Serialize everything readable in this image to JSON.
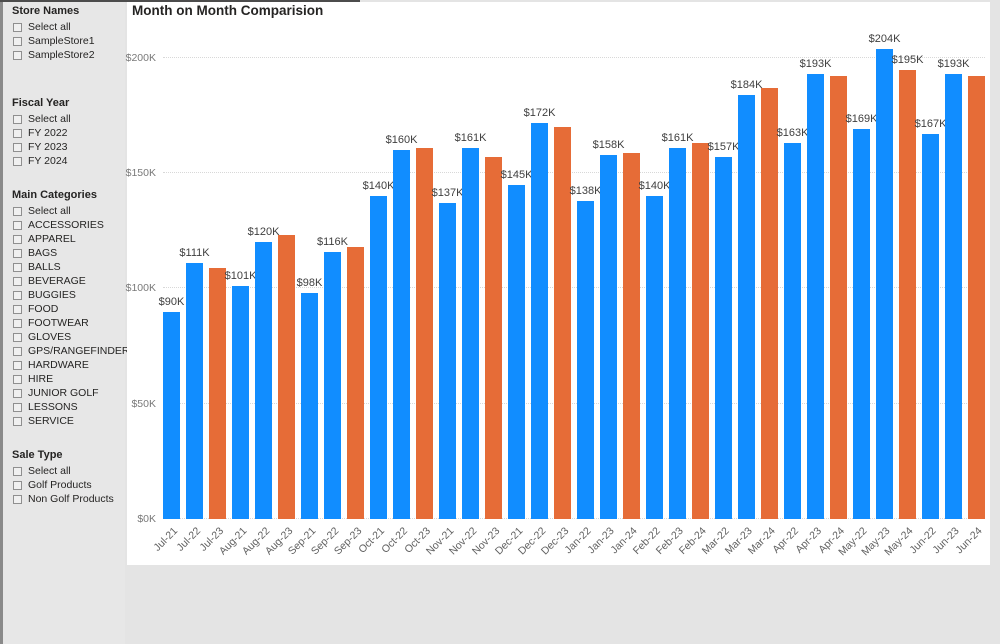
{
  "colors": {
    "bar_blue": "#118DFF",
    "bar_orange": "#E66C37",
    "card_bg": "#FFFFFF",
    "page_bg": "#E4E4E4"
  },
  "filter_pane": {
    "sections": [
      {
        "title": "Store Names",
        "items": [
          {
            "label": "Select all",
            "checked": false
          },
          {
            "label": "SampleStore1",
            "checked": false
          },
          {
            "label": "SampleStore2",
            "checked": false
          }
        ]
      },
      {
        "title": "Fiscal Year",
        "items": [
          {
            "label": "Select all",
            "checked": false
          },
          {
            "label": "FY 2022",
            "checked": false
          },
          {
            "label": "FY 2023",
            "checked": false
          },
          {
            "label": "FY 2024",
            "checked": false
          }
        ]
      },
      {
        "title": "Main Categories",
        "items": [
          {
            "label": "Select all",
            "checked": false
          },
          {
            "label": "ACCESSORIES",
            "checked": false
          },
          {
            "label": "APPAREL",
            "checked": false
          },
          {
            "label": "BAGS",
            "checked": false
          },
          {
            "label": "BALLS",
            "checked": false
          },
          {
            "label": "BEVERAGE",
            "checked": false
          },
          {
            "label": "BUGGIES",
            "checked": false
          },
          {
            "label": "FOOD",
            "checked": false
          },
          {
            "label": "FOOTWEAR",
            "checked": false
          },
          {
            "label": "GLOVES",
            "checked": false
          },
          {
            "label": "GPS/RANGEFINDERS",
            "checked": false
          },
          {
            "label": "HARDWARE",
            "checked": false
          },
          {
            "label": "HIRE",
            "checked": false
          },
          {
            "label": "JUNIOR GOLF",
            "checked": false
          },
          {
            "label": "LESSONS",
            "checked": false
          },
          {
            "label": "SERVICE",
            "checked": false
          }
        ]
      },
      {
        "title": "Sale Type",
        "items": [
          {
            "label": "Select all",
            "checked": false
          },
          {
            "label": "Golf Products",
            "checked": false
          },
          {
            "label": "Non Golf Products",
            "checked": false
          }
        ]
      }
    ]
  },
  "chart": {
    "title": "Month on Month Comparision"
  },
  "chart_data": {
    "type": "bar",
    "title": "Month on Month Comparision",
    "ylim": [
      0,
      212
    ],
    "grid": "dotted-horizontal",
    "legend": "none",
    "y_axis": {
      "ticks": [
        {
          "label": "$0K",
          "value": 0
        },
        {
          "label": "$50K",
          "value": 50
        },
        {
          "label": "$100K",
          "value": 100
        },
        {
          "label": "$150K",
          "value": 150
        },
        {
          "label": "$200K",
          "value": 200
        }
      ]
    },
    "bars": [
      {
        "category": "Jul-21",
        "value": 90,
        "color": "blue",
        "label": "$90K"
      },
      {
        "category": "Jul-22",
        "value": 111,
        "color": "blue",
        "label": "$111K"
      },
      {
        "category": "Jul-23",
        "value": 109,
        "color": "orange",
        "label": ""
      },
      {
        "category": "Aug-21",
        "value": 101,
        "color": "blue",
        "label": "$101K"
      },
      {
        "category": "Aug-22",
        "value": 120,
        "color": "blue",
        "label": "$120K"
      },
      {
        "category": "Aug-23",
        "value": 123,
        "color": "orange",
        "label": ""
      },
      {
        "category": "Sep-21",
        "value": 98,
        "color": "blue",
        "label": "$98K"
      },
      {
        "category": "Sep-22",
        "value": 116,
        "color": "blue",
        "label": "$116K"
      },
      {
        "category": "Sep-23",
        "value": 118,
        "color": "orange",
        "label": ""
      },
      {
        "category": "Oct-21",
        "value": 140,
        "color": "blue",
        "label": "$140K"
      },
      {
        "category": "Oct-22",
        "value": 160,
        "color": "blue",
        "label": "$160K"
      },
      {
        "category": "Oct-23",
        "value": 161,
        "color": "orange",
        "label": ""
      },
      {
        "category": "Nov-21",
        "value": 137,
        "color": "blue",
        "label": "$137K"
      },
      {
        "category": "Nov-22",
        "value": 161,
        "color": "blue",
        "label": "$161K"
      },
      {
        "category": "Nov-23",
        "value": 157,
        "color": "orange",
        "label": ""
      },
      {
        "category": "Dec-21",
        "value": 145,
        "color": "blue",
        "label": "$145K"
      },
      {
        "category": "Dec-22",
        "value": 172,
        "color": "blue",
        "label": "$172K"
      },
      {
        "category": "Dec-23",
        "value": 170,
        "color": "orange",
        "label": ""
      },
      {
        "category": "Jan-22",
        "value": 138,
        "color": "blue",
        "label": "$138K"
      },
      {
        "category": "Jan-23",
        "value": 158,
        "color": "blue",
        "label": "$158K"
      },
      {
        "category": "Jan-24",
        "value": 159,
        "color": "orange",
        "label": ""
      },
      {
        "category": "Feb-22",
        "value": 140,
        "color": "blue",
        "label": "$140K"
      },
      {
        "category": "Feb-23",
        "value": 161,
        "color": "blue",
        "label": "$161K"
      },
      {
        "category": "Feb-24",
        "value": 163,
        "color": "orange",
        "label": ""
      },
      {
        "category": "Mar-22",
        "value": 157,
        "color": "blue",
        "label": "$157K"
      },
      {
        "category": "Mar-23",
        "value": 184,
        "color": "blue",
        "label": "$184K"
      },
      {
        "category": "Mar-24",
        "value": 187,
        "color": "orange",
        "label": ""
      },
      {
        "category": "Apr-22",
        "value": 163,
        "color": "blue",
        "label": "$163K"
      },
      {
        "category": "Apr-23",
        "value": 193,
        "color": "blue",
        "label": "$193K"
      },
      {
        "category": "Apr-24",
        "value": 192,
        "color": "orange",
        "label": ""
      },
      {
        "category": "May-22",
        "value": 169,
        "color": "blue",
        "label": "$169K"
      },
      {
        "category": "May-23",
        "value": 204,
        "color": "blue",
        "label": "$204K"
      },
      {
        "category": "May-24",
        "value": 195,
        "color": "orange",
        "label": "$195K"
      },
      {
        "category": "Jun-22",
        "value": 167,
        "color": "blue",
        "label": "$167K"
      },
      {
        "category": "Jun-23",
        "value": 193,
        "color": "blue",
        "label": "$193K"
      },
      {
        "category": "Jun-24",
        "value": 192,
        "color": "orange",
        "label": ""
      }
    ]
  }
}
